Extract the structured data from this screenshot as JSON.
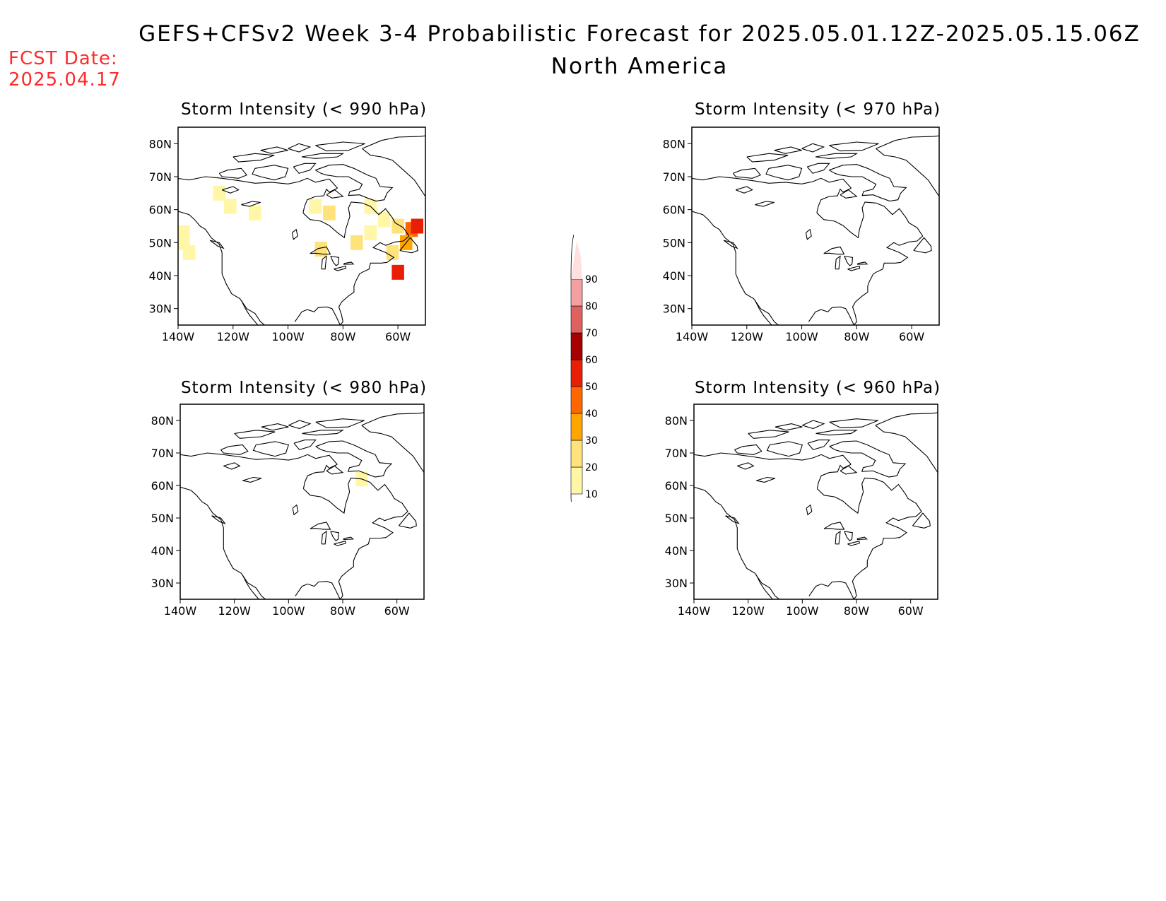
{
  "header": {
    "title": "GEFS+CFSv2 Week 3-4 Probabilistic Forecast for 2025.05.01.12Z-2025.05.15.06Z",
    "subtitle": "North America",
    "fcst_label": "FCST Date:",
    "fcst_value": "2025.04.17"
  },
  "colors": {
    "fcst_text": "#ff2a2a",
    "land_outline": "#000000"
  },
  "colorbar": {
    "levels": [
      "10",
      "20",
      "30",
      "40",
      "50",
      "60",
      "70",
      "80",
      "90"
    ],
    "colors": [
      "#fff6a6",
      "#ffe27a",
      "#ffa500",
      "#ff6600",
      "#e81e05",
      "#a80000",
      "#e06060",
      "#f4a0a0",
      "#ffe0e0"
    ]
  },
  "axes": {
    "lon_labels": [
      "140W",
      "120W",
      "100W",
      "80W",
      "60W"
    ],
    "lat_labels": [
      "80N",
      "70N",
      "60N",
      "50N",
      "40N",
      "30N"
    ]
  },
  "panels": [
    {
      "id": "p990",
      "title": "Storm Intensity (< 990 hPa)"
    },
    {
      "id": "p970",
      "title": "Storm Intensity (< 970 hPa)"
    },
    {
      "id": "p980",
      "title": "Storm Intensity (< 980 hPa)"
    },
    {
      "id": "p960",
      "title": "Storm Intensity (< 960 hPa)"
    }
  ],
  "chart_data": {
    "type": "heatmap",
    "units": "probability (%)",
    "lon_range": [
      -140,
      -50
    ],
    "lat_range": [
      25,
      85
    ],
    "panels": [
      {
        "threshold": "< 990 hPa",
        "cells": [
          {
            "lon": -138,
            "lat": 50,
            "v": 15
          },
          {
            "lon": -136,
            "lat": 47,
            "v": 12
          },
          {
            "lon": -138,
            "lat": 53,
            "v": 12
          },
          {
            "lon": -125,
            "lat": 65,
            "v": 12
          },
          {
            "lon": -121,
            "lat": 61,
            "v": 15
          },
          {
            "lon": -112,
            "lat": 59,
            "v": 12
          },
          {
            "lon": -90,
            "lat": 61,
            "v": 15
          },
          {
            "lon": -85,
            "lat": 59,
            "v": 20
          },
          {
            "lon": -70,
            "lat": 61,
            "v": 15
          },
          {
            "lon": -65,
            "lat": 57,
            "v": 15
          },
          {
            "lon": -60,
            "lat": 55,
            "v": 25
          },
          {
            "lon": -55,
            "lat": 54,
            "v": 40
          },
          {
            "lon": -53,
            "lat": 55,
            "v": 55
          },
          {
            "lon": -57,
            "lat": 50,
            "v": 30
          },
          {
            "lon": -62,
            "lat": 47,
            "v": 20
          },
          {
            "lon": -60,
            "lat": 41,
            "v": 50
          },
          {
            "lon": -75,
            "lat": 50,
            "v": 20
          },
          {
            "lon": -88,
            "lat": 48,
            "v": 25
          },
          {
            "lon": -70,
            "lat": 53,
            "v": 15
          }
        ]
      },
      {
        "threshold": "< 970 hPa",
        "cells": []
      },
      {
        "threshold": "< 980 hPa",
        "cells": [
          {
            "lon": -73,
            "lat": 62,
            "v": 12
          }
        ]
      },
      {
        "threshold": "< 960 hPa",
        "cells": []
      }
    ]
  }
}
